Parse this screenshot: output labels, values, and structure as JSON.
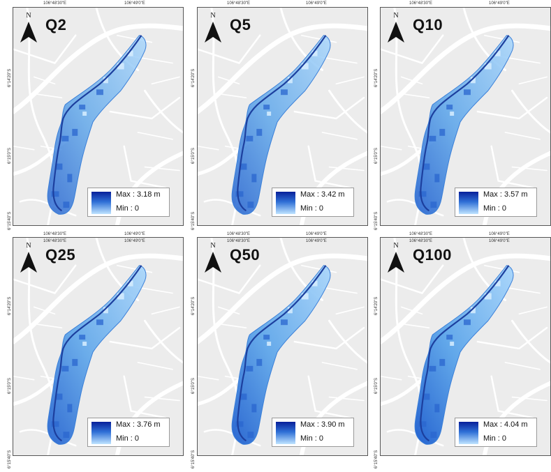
{
  "north_letter": "N",
  "ticks": {
    "lon_west": "106°48'30\"E",
    "lon_east": "106°49'0\"E",
    "lat_north": "6°14'20\"S",
    "lat_mid": "6°15'0\"S",
    "lat_south": "6°15'40\"S"
  },
  "colors": {
    "map_bg": "#ececec",
    "road": "#ffffff",
    "flood_light": "#bfe4ff",
    "flood_dark": "#08209a",
    "river": "#1c3f9e"
  },
  "panels": [
    {
      "title": "Q2",
      "legend": {
        "max": "Max : 3.18 m",
        "min": "Min : 0"
      }
    },
    {
      "title": "Q5",
      "legend": {
        "max": "Max : 3.42 m",
        "min": "Min : 0"
      }
    },
    {
      "title": "Q10",
      "legend": {
        "max": "Max : 3.57 m",
        "min": "Min : 0"
      }
    },
    {
      "title": "Q25",
      "legend": {
        "max": "Max : 3.76 m",
        "min": "Min : 0"
      }
    },
    {
      "title": "Q50",
      "legend": {
        "max": "Max : 3.90 m",
        "min": "Min : 0"
      }
    },
    {
      "title": "Q100",
      "legend": {
        "max": "Max : 4.04 m",
        "min": "Min : 0"
      }
    }
  ]
}
